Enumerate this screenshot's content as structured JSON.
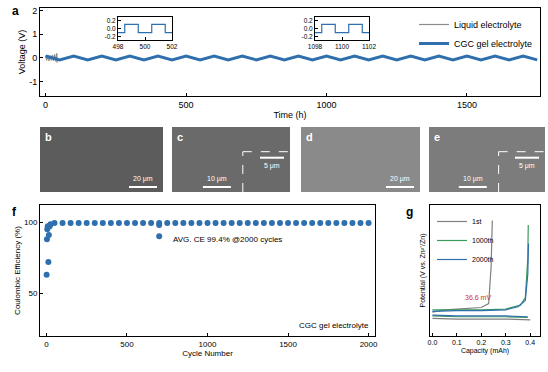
{
  "chart_data": [
    {
      "type": "line",
      "title": "a",
      "xlabel": "Time (h)",
      "ylabel": "Voltage (V)",
      "xlim": [
        -20,
        1760
      ],
      "xticks": [
        0,
        500,
        1000,
        1500
      ],
      "ylim": [
        -1.6,
        2.1
      ],
      "yticks": [
        -1,
        0,
        1,
        2
      ],
      "grid": false,
      "legend": "upper right",
      "series": [
        {
          "name": "Liquid electrolyte",
          "color": "#8c8c8c",
          "x": [
            0,
            4,
            8,
            12,
            16,
            20,
            24,
            28,
            32,
            36,
            40,
            41
          ],
          "values": [
            0.1,
            -0.1,
            0.12,
            -0.12,
            0.1,
            -0.1,
            0.12,
            -0.12,
            0.15,
            -0.15,
            0.2,
            -0.2
          ]
        },
        {
          "name": "CGC gel electrolyte",
          "color": "#2f6fae",
          "x": [
            0,
            50,
            100,
            150,
            200,
            250,
            300,
            350,
            400,
            450,
            500,
            550,
            600,
            650,
            700,
            750,
            800,
            850,
            900,
            950,
            1000,
            1050,
            1100,
            1150,
            1200,
            1250,
            1300,
            1350,
            1400,
            1450,
            1500,
            1550,
            1600,
            1650,
            1700,
            1750
          ],
          "values": [
            0.08,
            -0.08,
            0.08,
            -0.08,
            0.08,
            -0.08,
            0.08,
            -0.08,
            0.08,
            -0.08,
            0.08,
            -0.08,
            0.08,
            -0.08,
            0.08,
            -0.08,
            0.08,
            -0.08,
            0.08,
            -0.08,
            0.08,
            -0.08,
            0.08,
            -0.08,
            0.08,
            -0.08,
            0.08,
            -0.08,
            0.08,
            -0.08,
            0.08,
            -0.08,
            0.08,
            -0.08,
            0.08,
            -0.08
          ]
        }
      ]
    },
    {
      "type": "line",
      "xlim": [
        498,
        502
      ],
      "xticks": [
        498,
        500,
        502
      ],
      "ylim": [
        -0.28,
        0.28
      ],
      "yticks": [
        -0.2,
        {
          "value": 0,
          "label": "0.0"
        },
        0.2
      ],
      "grid": false,
      "series": [
        {
          "color": "#2f6fae",
          "x": [
            498,
            498.5,
            498.5,
            499.5,
            499.5,
            500.5,
            500.5,
            501.5,
            501.5,
            502
          ],
          "values": [
            -0.1,
            -0.1,
            0.1,
            0.1,
            -0.1,
            -0.1,
            0.1,
            0.1,
            -0.1,
            -0.1
          ]
        }
      ]
    },
    {
      "type": "line",
      "xlim": [
        1098,
        1102
      ],
      "xticks": [
        1098,
        1100,
        1102
      ],
      "ylim": [
        -0.28,
        0.28
      ],
      "yticks": [
        -0.2,
        {
          "value": 0,
          "label": "0.0"
        },
        0.2
      ],
      "grid": false,
      "series": [
        {
          "color": "#2f6fae",
          "x": [
            1098,
            1098.5,
            1098.5,
            1099.5,
            1099.5,
            1100.5,
            1100.5,
            1101.5,
            1101.5,
            1102
          ],
          "values": [
            -0.1,
            -0.1,
            0.1,
            0.1,
            -0.1,
            -0.1,
            0.1,
            0.1,
            -0.1,
            -0.1
          ]
        }
      ]
    },
    {
      "type": "scatter",
      "title": "f",
      "xlabel": "Cycle Number",
      "ylabel": "Coulombic Efficiency (%)",
      "xlim": [
        -40,
        2040
      ],
      "xticks": [
        0,
        500,
        1000,
        1500,
        2000
      ],
      "ylim": [
        20,
        112
      ],
      "yticks": [
        50,
        100
      ],
      "grid": false,
      "annotations": [
        "AVG. CE 99.4% @2000 cycles",
        "CGC gel electrolyte"
      ],
      "series": [
        {
          "color": "#2f6fae",
          "marker": "circle",
          "x": [
            1,
            3,
            5,
            8,
            12,
            15,
            20,
            25,
            50,
            100,
            150,
            200,
            250,
            300,
            350,
            400,
            450,
            500,
            550,
            600,
            650,
            700,
            700,
            700,
            750,
            800,
            850,
            900,
            950,
            1000,
            1050,
            1100,
            1150,
            1200,
            1250,
            1300,
            1350,
            1400,
            1450,
            1500,
            1550,
            1600,
            1650,
            1700,
            1750,
            1800,
            1850,
            1900,
            1950,
            2000
          ],
          "values": [
            63,
            88,
            95,
            97,
            72,
            91,
            97,
            98.5,
            99.4,
            99.4,
            99.4,
            99.4,
            99.4,
            99.4,
            99.4,
            99.4,
            99.4,
            99.4,
            99.4,
            99.4,
            99.4,
            99.4,
            98,
            90,
            99.4,
            99.4,
            99.4,
            99.4,
            99.4,
            99.4,
            99.4,
            99.4,
            99.4,
            99.4,
            99.4,
            99.4,
            99.4,
            99.4,
            99.4,
            99.4,
            99.4,
            99.4,
            99.4,
            99.4,
            99.4,
            99.4,
            99.4,
            99.4,
            99.4,
            99.4
          ]
        }
      ]
    },
    {
      "type": "line",
      "title": "g",
      "xlabel": "Capacity (mAh)",
      "ylabel": "Potential (V vs. Zn²⁺/Zn)",
      "xlim": [
        -0.01,
        0.44
      ],
      "xticks": [
        {
          "value": 0,
          "label": "0.0"
        },
        0.1,
        0.2,
        0.3,
        0.4
      ],
      "ylim": [
        -0.15,
        0.7
      ],
      "grid": false,
      "tick_labels": "x",
      "legend": "upper left",
      "annotations": [
        "36.6 mV"
      ],
      "series": [
        {
          "name": "1st",
          "color": "#7f7f7f",
          "x": [
            0,
            0.1,
            0.2,
            0.3,
            0.4,
            0.4,
            0,
            0.05,
            0.1,
            0.15,
            0.2,
            0.23,
            0.24,
            0.245
          ],
          "values": [
            -0.035,
            -0.04,
            -0.04,
            -0.04,
            -0.045,
            null,
            0.005,
            0.02,
            0.025,
            0.03,
            0.035,
            0.06,
            0.3,
            0.6
          ]
        },
        {
          "name": "1000th",
          "color": "#3a9a5b",
          "x": [
            0,
            0.1,
            0.2,
            0.3,
            0.39,
            0.39,
            0,
            0.1,
            0.2,
            0.3,
            0.36,
            0.38,
            0.39,
            0.392
          ],
          "values": [
            -0.02,
            -0.025,
            -0.025,
            -0.025,
            -0.03,
            null,
            0.02,
            0.02,
            0.02,
            0.025,
            0.05,
            0.1,
            0.35,
            0.57
          ]
        },
        {
          "name": "2000th",
          "color": "#2f6fae",
          "x": [
            0,
            0.1,
            0.2,
            0.3,
            0.39,
            0.39,
            0,
            0.1,
            0.2,
            0.3,
            0.35,
            0.38,
            0.39,
            0.393
          ],
          "values": [
            -0.015,
            -0.02,
            -0.02,
            -0.02,
            -0.025,
            null,
            0.01,
            0.015,
            0.015,
            0.02,
            0.04,
            0.08,
            0.25,
            0.45
          ]
        }
      ]
    }
  ],
  "images": [
    {
      "label": "b",
      "scale_bar": "20 μm"
    },
    {
      "label": "c",
      "scale_bar": "10 μm",
      "inset_scale_bar": "5 μm"
    },
    {
      "label": "d",
      "scale_bar": "20 μm"
    },
    {
      "label": "e",
      "scale_bar": "10 μm",
      "inset_scale_bar": "5 μm"
    }
  ]
}
